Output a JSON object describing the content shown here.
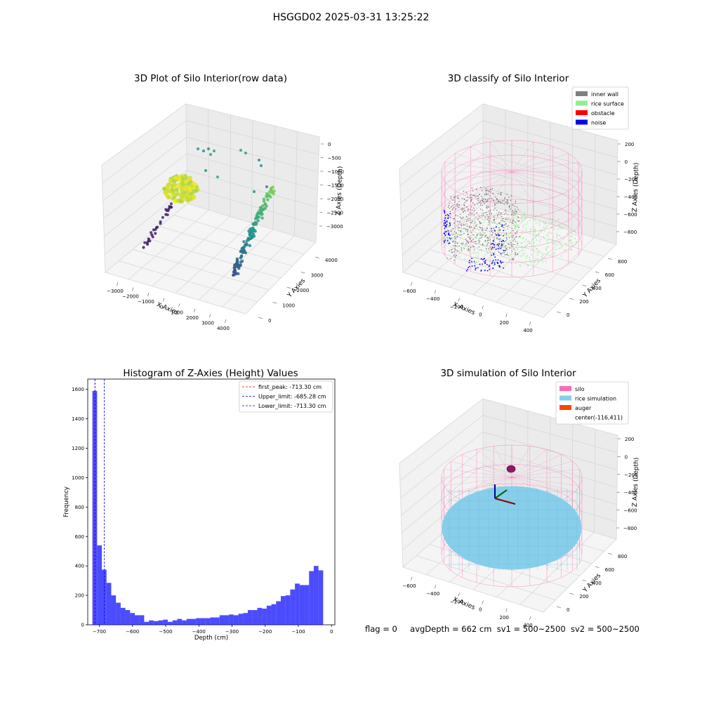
{
  "suptitle": "HSGGD02 2025-03-31 13:25:22",
  "bottom_text": {
    "flag": "flag = 0",
    "avg_depth": "avgDepth = 662 cm",
    "sv1": "sv1 = 500~2500",
    "sv2": "sv2 = 500~2500"
  },
  "colors": {
    "inner_wall": "#808080",
    "rice_surface": "#90ee90",
    "obstacle": "#ff0000",
    "noise": "#0000ff",
    "silo": "#ff69b4",
    "rice_simulation": "#87ceeb",
    "auger": "#ff4500",
    "histogram_bar": "#0000ff",
    "first_peak_line": "#ff0000",
    "limit_line": "#0000ff"
  },
  "chart_data": [
    {
      "type": "scatter",
      "projection": "3d",
      "title": "3D Plot of Silo Interior(row data)",
      "xlabel": "X Axies",
      "ylabel": "Y Axies",
      "zlabel": "Z Axies (Depth)",
      "xticks": [
        "−3000",
        "−2000",
        "−1000",
        "0",
        "1000",
        "2000",
        "3000",
        "4000"
      ],
      "yticks": [
        "0",
        "1000",
        "2000",
        "3000",
        "4000"
      ],
      "zticks": [
        "0",
        "−500",
        "−1000",
        "−1500",
        "−2000",
        "−2500",
        "−3000"
      ],
      "colormap": "viridis",
      "grid": true
    },
    {
      "type": "scatter",
      "projection": "3d",
      "title": "3D classify of Silo Interior",
      "xlabel": "X Axies",
      "ylabel": "Y Axies",
      "zlabel": "Z Axies (Depth)",
      "xticks": [
        "−600",
        "−400",
        "−200",
        "0",
        "200",
        "400"
      ],
      "yticks": [
        "0",
        "200",
        "400",
        "600",
        "800"
      ],
      "zticks": [
        "200",
        "0",
        "−200",
        "−400",
        "−600",
        "−800"
      ],
      "legend": {
        "placement": "top-right",
        "entries": [
          {
            "label": "inner wall",
            "color": "#808080"
          },
          {
            "label": "rice surface",
            "color": "#90ee90"
          },
          {
            "label": "obstacle",
            "color": "#ff0000"
          },
          {
            "label": "noise",
            "color": "#0000ff"
          }
        ]
      },
      "grid": true
    },
    {
      "type": "bar",
      "title": "Histogram of Z-Axies (Height) Values",
      "xlabel": "Depth (cm)",
      "ylabel": "Frequency",
      "xlim": [
        -735,
        10
      ],
      "ylim": [
        0,
        1670
      ],
      "xticks": [
        "−700",
        "−600",
        "−500",
        "−400",
        "−300",
        "−200",
        "−100",
        "0"
      ],
      "yticks": [
        "0",
        "200",
        "400",
        "600",
        "800",
        "1000",
        "1200",
        "1400",
        "1600"
      ],
      "bin_start": -721,
      "bin_width": 14.2,
      "values": [
        1590,
        540,
        375,
        285,
        200,
        150,
        115,
        100,
        80,
        65,
        65,
        20,
        30,
        25,
        30,
        35,
        20,
        30,
        40,
        30,
        40,
        40,
        45,
        45,
        45,
        50,
        50,
        65,
        65,
        70,
        65,
        75,
        80,
        100,
        100,
        115,
        110,
        130,
        140,
        160,
        195,
        200,
        240,
        280,
        270,
        270,
        365,
        400,
        370
      ],
      "vlines": [
        {
          "label": "first_peak: -713.30 cm",
          "x": -713.3,
          "color": "#ff0000"
        },
        {
          "label": "Upper_limit: -685.28 cm",
          "x": -685.28,
          "color": "#0000ff"
        },
        {
          "label": "Lower_limit: -713.30 cm",
          "x": -713.3,
          "color": "#0000ff"
        }
      ],
      "legend": {
        "placement": "top-right"
      }
    },
    {
      "type": "scatter",
      "projection": "3d",
      "title": "3D simulation of Silo Interior",
      "xlabel": "X Axies",
      "ylabel": "Y Axies",
      "zlabel": "Z Axies (Depth)",
      "xticks": [
        "−600",
        "−400",
        "−200",
        "0",
        "200",
        "400"
      ],
      "yticks": [
        "0",
        "200",
        "400",
        "600",
        "800"
      ],
      "zticks": [
        "200",
        "0",
        "−200",
        "−400",
        "−600",
        "−800"
      ],
      "legend": {
        "placement": "top-right",
        "entries": [
          {
            "label": "silo",
            "color": "#ff69b4"
          },
          {
            "label": "rice simulation",
            "color": "#87ceeb"
          },
          {
            "label": "auger",
            "color": "#ff4500"
          },
          {
            "label": "center(-116,411)",
            "color": ""
          }
        ]
      },
      "grid": true
    }
  ]
}
